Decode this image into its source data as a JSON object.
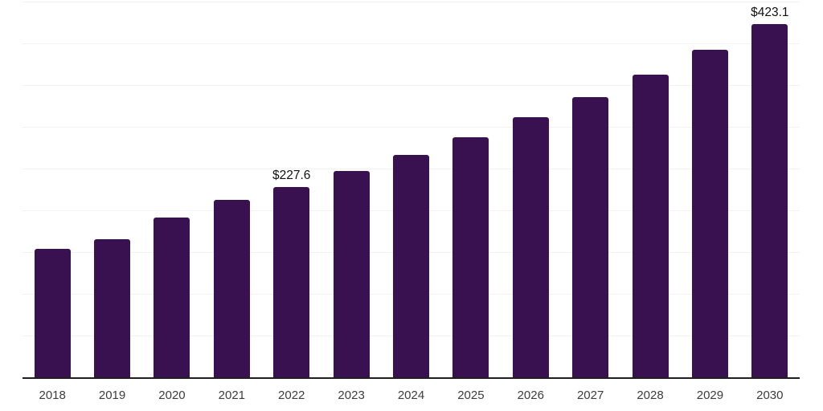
{
  "chart": {
    "bar_color": "#3A1150",
    "axis_color": "#1f1f1f",
    "gridline_color": "#f2f2f2",
    "value_label_color": "#111111",
    "tick_label_color": "#3d3d3d"
  },
  "chart_data": {
    "type": "bar",
    "title": "",
    "xlabel": "",
    "ylabel": "",
    "categories": [
      "2018",
      "2019",
      "2020",
      "2021",
      "2022",
      "2023",
      "2024",
      "2025",
      "2026",
      "2027",
      "2028",
      "2029",
      "2030"
    ],
    "values": [
      154.0,
      165.5,
      191.8,
      212.7,
      227.6,
      247.3,
      266.5,
      287.3,
      311.3,
      335.4,
      362.7,
      392.5,
      423.1
    ],
    "data_labels": [
      {
        "category": "2022",
        "text": "$227.6"
      },
      {
        "category": "2030",
        "text": "$423.1"
      }
    ],
    "ylim": [
      0,
      452
    ],
    "gridline_step": 50,
    "grid": "horizontal",
    "legend": "none"
  }
}
